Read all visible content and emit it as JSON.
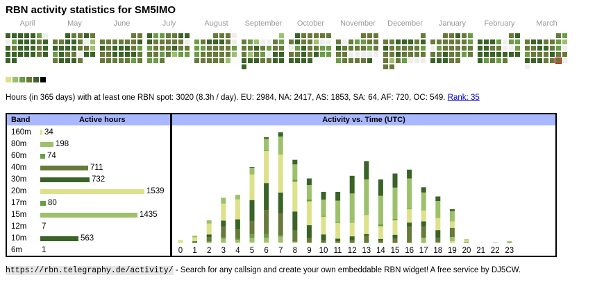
{
  "title": "RBN activity statistics for SM5IMO",
  "colors": {
    "none": "#eeeeee",
    "l1": "#dde28a",
    "l2": "#9dc06a",
    "l3": "#6a9e45",
    "l4": "#687a3a",
    "l5": "#3a6327",
    "l6": "#000000",
    "header_bg": "#a8b7ff",
    "today_outline": "#dd0000"
  },
  "months": [
    {
      "label": "April",
      "weeks": [
        [
          5,
          5,
          5,
          5,
          5,
          3,
          0
        ],
        [
          0,
          3,
          5,
          5,
          5,
          4,
          5
        ],
        [
          5,
          4,
          5,
          5,
          5,
          4,
          5
        ],
        [
          5,
          5,
          5,
          5,
          5,
          4,
          5
        ],
        [
          5,
          5
        ]
      ]
    },
    {
      "label": "May",
      "weeks": [
        [
          null,
          null,
          5,
          4,
          4,
          5,
          4
        ],
        [
          4,
          4,
          5,
          5,
          4,
          0,
          2,
          4
        ],
        [
          5,
          5,
          5,
          5,
          4,
          4,
          2
        ],
        [
          3,
          5,
          4,
          4,
          0,
          5,
          5
        ],
        [
          4,
          5,
          5,
          5,
          4
        ]
      ]
    },
    {
      "label": "June",
      "weeks": [
        [
          null,
          null,
          null,
          null,
          null,
          4,
          4
        ],
        [
          4,
          4,
          4,
          4,
          4,
          4,
          5
        ],
        [
          5,
          4,
          5,
          5,
          5,
          4,
          3
        ],
        [
          4,
          4,
          5,
          5,
          5,
          5,
          4
        ],
        [
          4,
          4,
          4,
          4,
          4,
          3,
          4
        ]
      ]
    },
    {
      "label": "July",
      "weeks": [
        [
          5,
          3,
          3,
          4,
          4,
          5,
          5
        ],
        [
          5,
          4,
          4,
          4,
          4,
          4,
          0
        ],
        [
          3,
          4,
          4,
          4,
          5,
          4,
          4
        ],
        [
          4,
          4,
          3,
          4,
          2,
          3,
          3
        ],
        [
          3,
          3,
          4
        ]
      ]
    },
    {
      "label": "August",
      "weeks": [
        [
          null,
          null,
          null,
          4,
          4,
          4,
          0
        ],
        [
          3,
          4,
          5,
          5,
          5,
          4,
          0
        ],
        [
          3,
          3,
          4,
          4,
          4,
          4,
          3
        ],
        [
          3,
          4,
          4,
          4,
          4,
          4,
          2
        ],
        [
          4,
          4,
          4,
          4,
          4,
          2
        ]
      ]
    },
    {
      "label": "September",
      "weeks": [
        [
          null,
          null,
          null,
          null,
          null,
          null,
          2
        ],
        [
          4,
          3,
          2,
          0,
          0,
          4,
          3
        ],
        [
          4,
          4,
          5,
          4,
          3,
          4,
          4
        ],
        [
          4,
          2,
          4,
          3,
          0,
          5,
          5
        ],
        [
          5,
          5,
          5,
          4,
          4,
          5,
          5
        ],
        [
          5
        ]
      ]
    },
    {
      "label": "October",
      "weeks": [
        [
          null,
          5,
          4,
          4,
          4,
          4,
          4
        ],
        [
          4,
          5,
          4,
          4,
          2,
          0,
          0
        ],
        [
          0,
          3,
          5,
          4,
          4,
          3,
          3
        ],
        [
          4,
          4,
          5,
          4,
          5,
          3,
          3
        ],
        [
          5,
          5,
          5,
          5
        ]
      ]
    },
    {
      "label": "November",
      "weeks": [
        [
          null,
          null,
          null,
          null,
          4,
          4,
          4
        ],
        [
          4,
          0,
          4,
          3,
          3,
          4,
          4
        ],
        [
          5,
          4,
          4,
          4,
          4,
          3,
          4
        ],
        [
          4,
          4,
          0,
          0,
          0,
          0,
          0
        ],
        [
          3,
          4,
          4,
          4,
          4,
          5
        ]
      ]
    },
    {
      "label": "December",
      "weeks": [
        [
          null,
          null,
          null,
          null,
          null,
          null,
          4
        ],
        [
          4,
          4,
          5,
          5,
          5,
          4,
          5
        ],
        [
          5,
          4,
          4,
          4,
          4,
          4,
          3
        ],
        [
          4,
          4,
          5,
          4,
          4,
          4,
          4
        ],
        [
          4,
          2,
          4,
          3,
          0,
          0,
          0
        ],
        [
          4,
          4
        ]
      ]
    },
    {
      "label": "January",
      "weeks": [
        [
          null,
          null,
          4,
          4,
          5,
          4,
          3
        ],
        [
          4,
          4,
          4,
          4,
          4,
          4,
          3
        ],
        [
          0,
          3,
          4,
          4,
          4,
          4,
          4
        ],
        [
          4,
          4,
          5,
          4,
          4,
          3,
          4
        ],
        [
          5,
          5,
          5,
          4,
          4
        ]
      ]
    },
    {
      "label": "February",
      "weeks": [
        [
          null,
          null,
          null,
          null,
          null,
          4,
          5
        ],
        [
          5,
          5,
          5,
          3,
          0,
          3,
          3
        ],
        [
          5,
          5,
          4,
          4,
          0,
          0,
          3
        ],
        [
          5,
          5,
          5,
          5,
          5,
          5,
          5
        ],
        [
          5,
          3,
          4,
          3,
          4
        ]
      ]
    },
    {
      "label": "March",
      "weeks": [
        [
          null,
          null,
          null,
          null,
          null,
          4,
          3
        ],
        [
          4,
          5,
          5,
          4,
          4,
          3,
          2
        ],
        [
          4,
          4,
          5,
          5,
          4,
          3,
          0
        ],
        [
          3,
          4,
          4,
          4,
          5,
          4,
          4
        ],
        [
          5,
          5,
          5,
          4,
          4,
          "T",
          0
        ],
        [
          0
        ]
      ]
    }
  ],
  "legend_levels": [
    "l1",
    "l2",
    "l3",
    "l4",
    "l5",
    "l6"
  ],
  "stats": {
    "text": "Hours (in 365 days) with at least one RBN spot: 3020 (8.3h / day). EU: 2984, NA: 2417, AS: 1853, SA: 64, AF: 720, OC: 549.",
    "rank_link": "Rank: 35"
  },
  "band_table": {
    "header_band": "Band",
    "header_hours": "Active hours",
    "rows": [
      {
        "band": "160m",
        "hours": 34,
        "color": "#dde28a"
      },
      {
        "band": "80m",
        "hours": 198,
        "color": "#9dc06a"
      },
      {
        "band": "60m",
        "hours": 74,
        "color": "#6a9e45"
      },
      {
        "band": "40m",
        "hours": 711,
        "color": "#687a3a"
      },
      {
        "band": "30m",
        "hours": 732,
        "color": "#3a6327"
      },
      {
        "band": "20m",
        "hours": 1539,
        "color": "#dde28a"
      },
      {
        "band": "17m",
        "hours": 80,
        "color": "#6a9e45"
      },
      {
        "band": "15m",
        "hours": 1435,
        "color": "#9dc06a"
      },
      {
        "band": "12m",
        "hours": 7,
        "color": "#687a3a"
      },
      {
        "band": "10m",
        "hours": 563,
        "color": "#3a6327"
      },
      {
        "band": "6m",
        "hours": 1,
        "color": "#dde28a"
      }
    ]
  },
  "chart_data": {
    "type": "bar",
    "stacked": true,
    "title": "Activity vs. Time (UTC)",
    "xlabel": "",
    "ylabel": "",
    "categories": [
      "0",
      "1",
      "2",
      "3",
      "4",
      "5",
      "6",
      "7",
      "8",
      "9",
      "10",
      "11",
      "12",
      "13",
      "14",
      "15",
      "16",
      "17",
      "18",
      "19",
      "20",
      "21",
      "22",
      "23"
    ],
    "series": [
      {
        "name": "160m",
        "color": "#dde28a",
        "values": [
          0,
          0,
          0,
          2,
          2,
          3,
          3,
          3,
          2,
          1,
          1,
          1,
          1,
          1,
          1,
          1,
          1,
          1,
          1,
          6,
          0,
          0,
          0,
          0
        ]
      },
      {
        "name": "80m",
        "color": "#9dc06a",
        "values": [
          0,
          1,
          4,
          12,
          8,
          13,
          14,
          17,
          2,
          1,
          0,
          0,
          0,
          0,
          0,
          0,
          0,
          16,
          1,
          13,
          5,
          0,
          0,
          2
        ]
      },
      {
        "name": "60m",
        "color": "#6a9e45",
        "values": [
          0,
          1,
          2,
          4,
          3,
          11,
          11,
          4,
          1,
          0,
          0,
          0,
          0,
          0,
          0,
          0,
          1,
          0,
          1,
          0,
          0,
          0,
          0,
          0
        ]
      },
      {
        "name": "40m",
        "color": "#687a3a",
        "values": [
          0,
          1,
          13,
          33,
          29,
          41,
          73,
          67,
          34,
          14,
          6,
          5,
          7,
          21,
          6,
          13,
          49,
          34,
          14,
          26,
          0,
          0,
          1,
          1
        ]
      },
      {
        "name": "30m",
        "color": "#3a6327",
        "values": [
          0,
          3,
          8,
          18,
          31,
          64,
          83,
          64,
          58,
          39,
          20,
          8,
          13,
          6,
          6,
          12,
          12,
          16,
          23,
          2,
          0,
          0,
          0,
          0
        ]
      },
      {
        "name": "20m",
        "color": "#dde28a",
        "values": [
          10,
          12,
          33,
          52,
          61,
          78,
          98,
          117,
          91,
          73,
          54,
          48,
          42,
          58,
          39,
          44,
          41,
          33,
          37,
          20,
          4,
          1,
          0,
          1
        ]
      },
      {
        "name": "17m",
        "color": "#6a9e45",
        "values": [
          0,
          0,
          0,
          0,
          0,
          0,
          2,
          2,
          6,
          6,
          3,
          3,
          2,
          0,
          6,
          4,
          2,
          1,
          0,
          1,
          0,
          0,
          0,
          0
        ]
      },
      {
        "name": "15m",
        "color": "#9dc06a",
        "values": [
          0,
          5,
          10,
          18,
          14,
          21,
          35,
          52,
          47,
          44,
          49,
          65,
          87,
          109,
          87,
          96,
          92,
          54,
          52,
          30,
          3,
          0,
          0,
          2
        ]
      },
      {
        "name": "12m",
        "color": "#687a3a",
        "values": [
          0,
          0,
          0,
          0,
          0,
          0,
          0,
          0,
          0,
          0,
          0,
          0,
          0,
          0,
          0,
          0,
          0,
          0,
          0,
          0,
          0,
          0,
          0,
          0
        ]
      },
      {
        "name": "10m",
        "color": "#3a6327",
        "values": [
          0,
          0,
          0,
          0,
          0,
          2,
          5,
          13,
          14,
          20,
          24,
          27,
          54,
          56,
          50,
          43,
          27,
          16,
          14,
          6,
          0,
          0,
          0,
          0
        ]
      },
      {
        "name": "6m",
        "color": "#dde28a",
        "values": [
          0,
          0,
          0,
          0,
          0,
          0,
          0,
          0,
          0,
          0,
          0,
          0,
          0,
          0,
          0,
          0,
          0,
          0,
          0,
          0,
          0,
          0,
          0,
          0
        ]
      }
    ]
  },
  "footer": {
    "url": "https://rbn.telegraphy.de/activity/",
    "text": " - Search for any callsign and create your own embeddable RBN widget! A free service by DJ5CW."
  }
}
